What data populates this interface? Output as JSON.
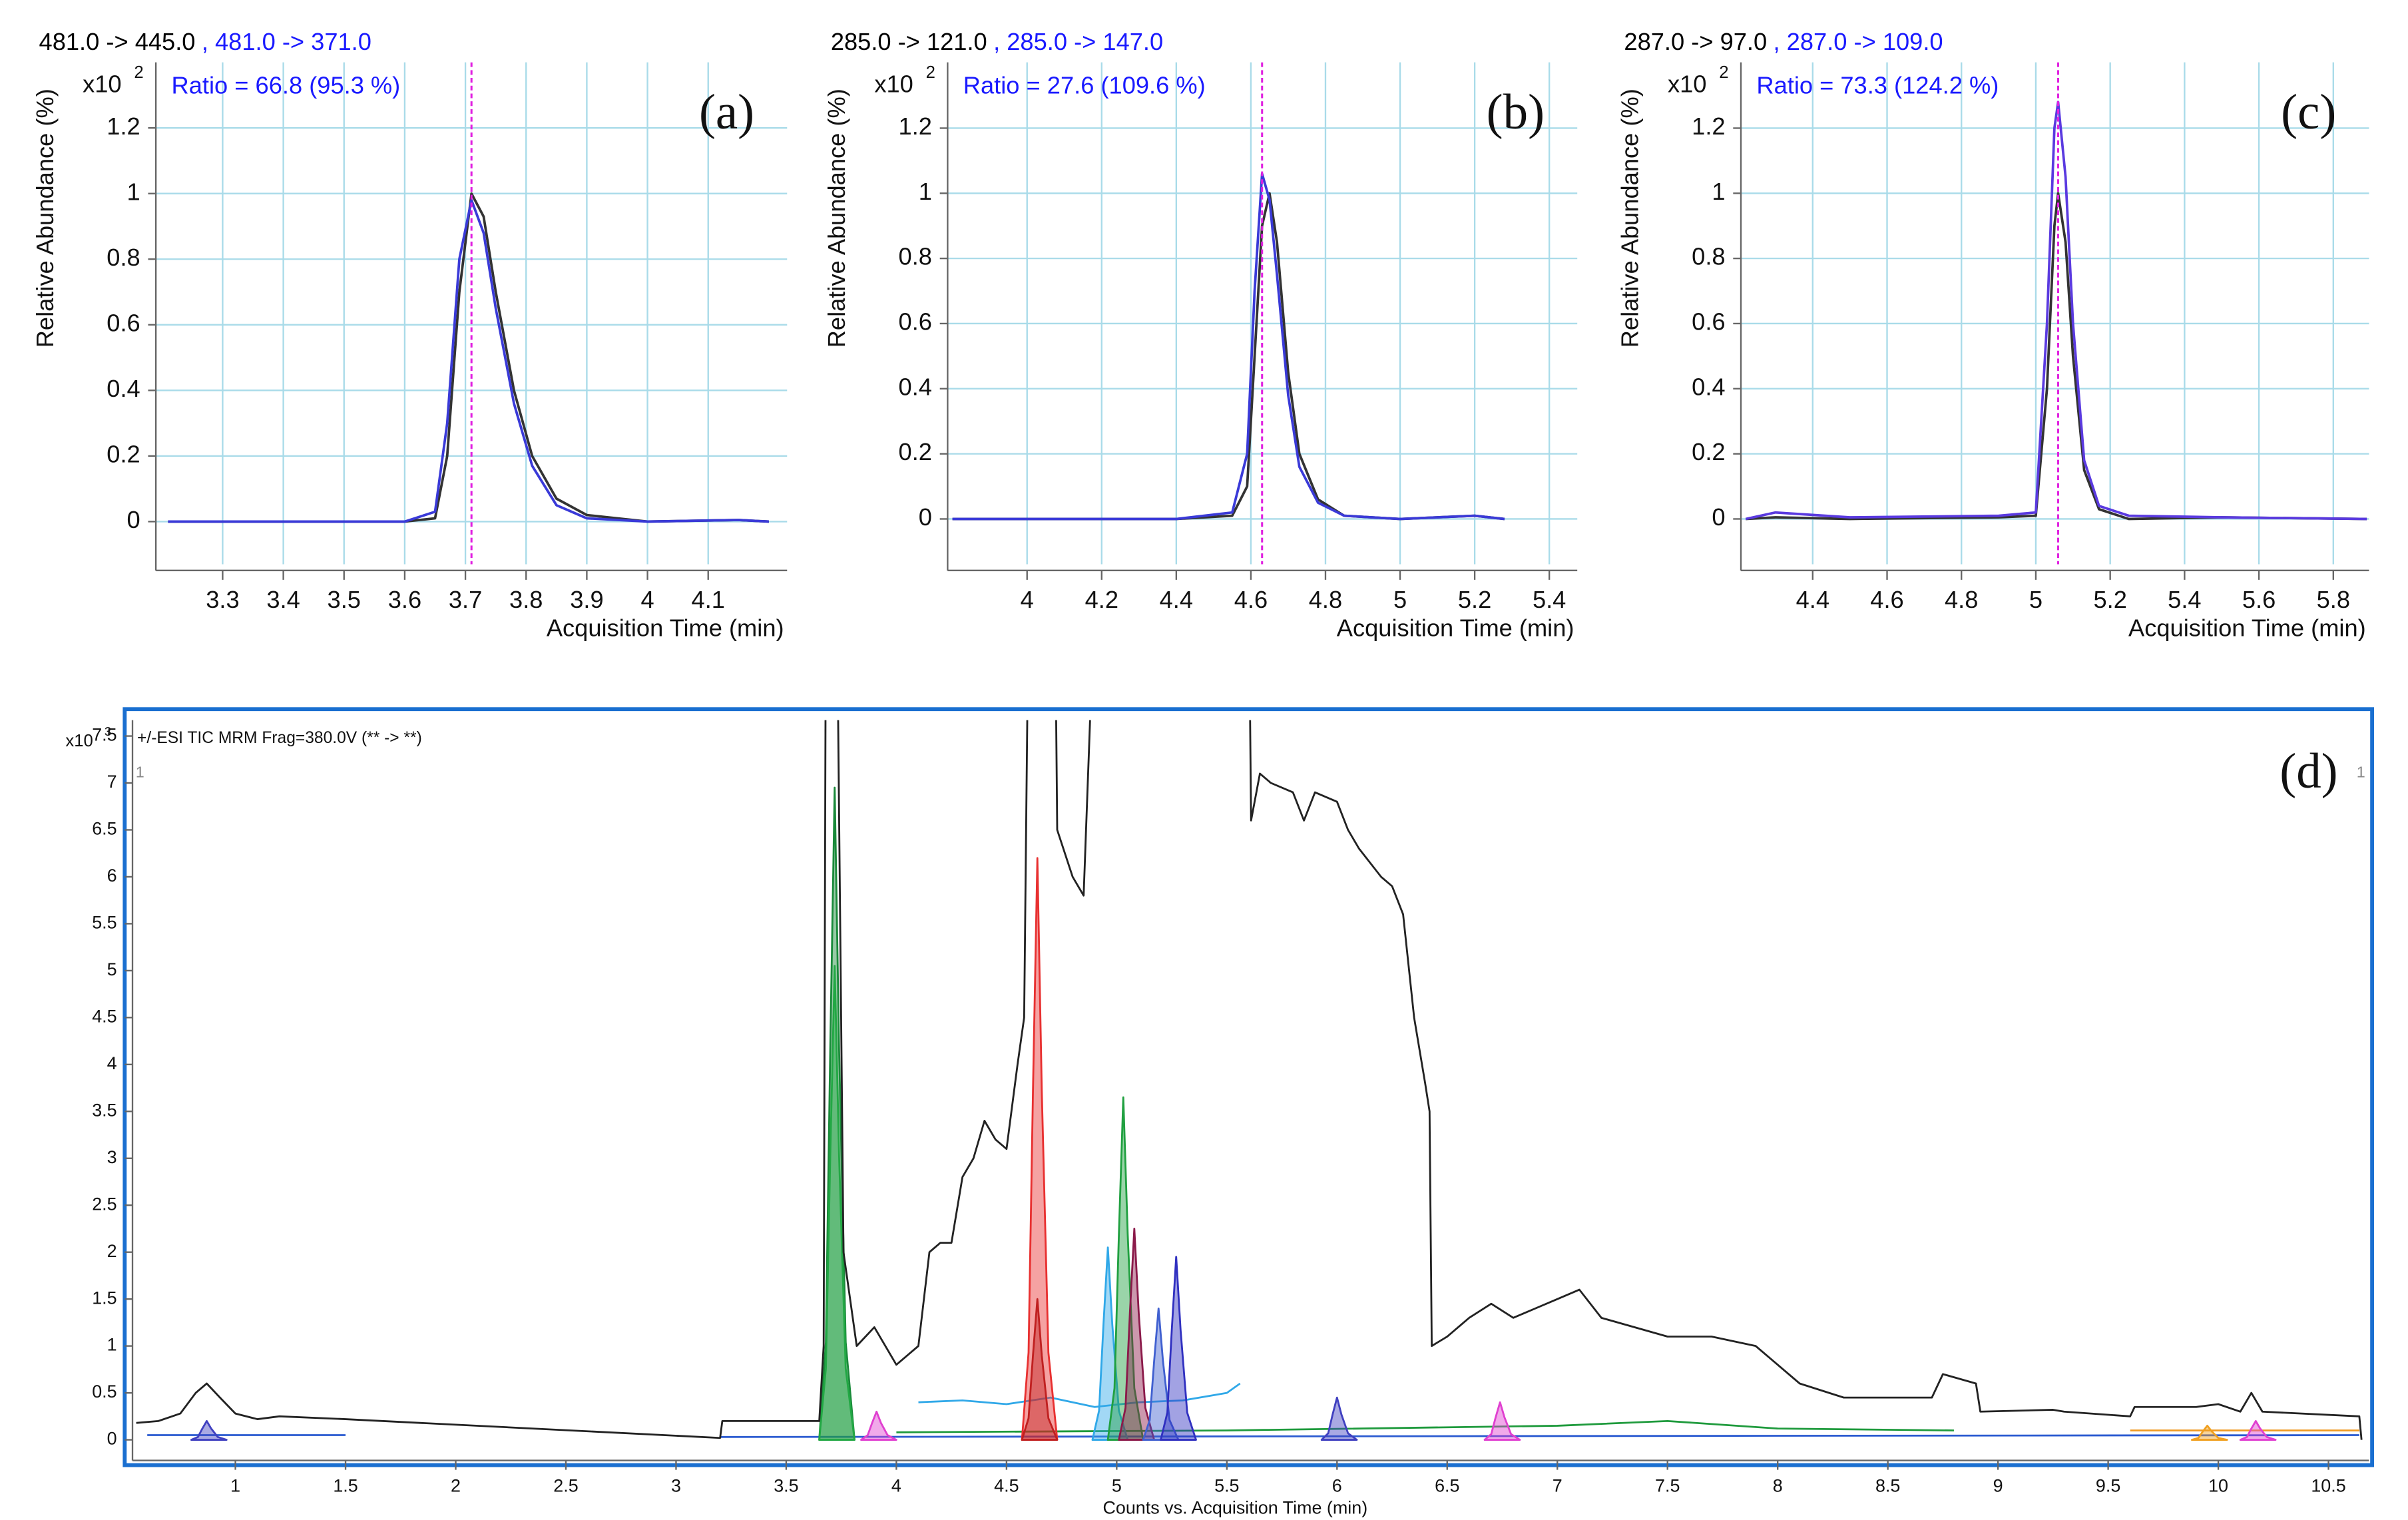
{
  "chart_data": [
    {
      "type": "line",
      "title": [
        {
          "text": "481.0 -> 445.0",
          "color": "#000000"
        },
        {
          "text": ", 481.0 -> 371.0",
          "color": "#1a1aff"
        }
      ],
      "y_multiplier": {
        "base": "x10",
        "exponent": 2
      },
      "annotation": "Ratio = 66.8 (95.3 %)",
      "panel_label": "(a)",
      "ylabel": "Relative Abundance (%)",
      "xlabel": "Acquisition Time (min)",
      "xlim": [
        3.19,
        4.23
      ],
      "xticks": [
        3.3,
        3.4,
        3.5,
        3.6,
        3.7,
        3.8,
        3.9,
        4,
        4.1
      ],
      "ylim": [
        -0.13,
        1.4
      ],
      "yticks": [
        0,
        0.2,
        0.4,
        0.6,
        0.8,
        1,
        1.2
      ],
      "grid": true,
      "marker_x": 3.71,
      "marker_color": "#e020e0",
      "series": [
        {
          "color": "#333333",
          "x": [
            3.21,
            3.6,
            3.65,
            3.67,
            3.69,
            3.71,
            3.73,
            3.75,
            3.78,
            3.81,
            3.85,
            3.9,
            4.0,
            4.15,
            4.2
          ],
          "values": [
            0,
            0,
            0.01,
            0.2,
            0.7,
            1.0,
            0.93,
            0.7,
            0.4,
            0.2,
            0.07,
            0.02,
            0,
            0.005,
            0
          ]
        },
        {
          "color": "#3a3ad8",
          "x": [
            3.21,
            3.6,
            3.65,
            3.67,
            3.69,
            3.71,
            3.73,
            3.75,
            3.78,
            3.81,
            3.85,
            3.9,
            4.0,
            4.15,
            4.2
          ],
          "values": [
            0,
            0,
            0.03,
            0.3,
            0.8,
            0.98,
            0.88,
            0.65,
            0.36,
            0.17,
            0.05,
            0.01,
            0,
            0.005,
            0
          ]
        }
      ]
    },
    {
      "type": "line",
      "title": [
        {
          "text": "285.0 -> 121.0",
          "color": "#000000"
        },
        {
          "text": ", 285.0 -> 147.0",
          "color": "#1a1aff"
        }
      ],
      "y_multiplier": {
        "base": "x10",
        "exponent": 2
      },
      "annotation": "Ratio = 27.6 (109.6 %)",
      "panel_label": "(b)",
      "ylabel": "Relative Abundance (%)",
      "xlabel": "Acquisition Time (min)",
      "xlim": [
        3.787,
        5.475
      ],
      "xticks": [
        4,
        4.2,
        4.4,
        4.6,
        4.8,
        5,
        5.2,
        5.4
      ],
      "ylim": [
        -0.139,
        1.402
      ],
      "yticks": [
        0,
        0.2,
        0.4,
        0.6,
        0.8,
        1,
        1.2
      ],
      "grid": true,
      "marker_x": 4.63,
      "marker_color": "#e020e0",
      "series": [
        {
          "color": "#333333",
          "x": [
            3.8,
            4.4,
            4.55,
            4.59,
            4.61,
            4.63,
            4.65,
            4.67,
            4.7,
            4.73,
            4.78,
            4.85,
            5.0,
            5.2,
            5.28
          ],
          "values": [
            0,
            0,
            0.01,
            0.1,
            0.5,
            0.9,
            1.0,
            0.85,
            0.45,
            0.2,
            0.06,
            0.01,
            0,
            0.01,
            0
          ]
        },
        {
          "color": "#3a3ad8",
          "x": [
            3.8,
            4.4,
            4.55,
            4.59,
            4.61,
            4.63,
            4.65,
            4.67,
            4.7,
            4.73,
            4.78,
            4.85,
            5.0,
            5.2,
            5.28
          ],
          "values": [
            0,
            0,
            0.02,
            0.2,
            0.7,
            1.06,
            0.98,
            0.75,
            0.38,
            0.16,
            0.05,
            0.01,
            0,
            0.01,
            0
          ]
        }
      ]
    },
    {
      "type": "line",
      "title": [
        {
          "text": "287.0 -> 97.0",
          "color": "#000000"
        },
        {
          "text": ", 287.0 -> 109.0",
          "color": "#1a1aff"
        }
      ],
      "y_multiplier": {
        "base": "x10",
        "exponent": 2
      },
      "annotation": "Ratio = 73.3 (124.2 %)",
      "panel_label": "(c)",
      "ylabel": "Relative Abundance (%)",
      "xlabel": "Acquisition Time (min)",
      "xlim": [
        4.207,
        5.896
      ],
      "xticks": [
        4.4,
        4.6,
        4.8,
        5,
        5.2,
        5.4,
        5.6,
        5.8
      ],
      "ylim": [
        -0.139,
        1.402
      ],
      "yticks": [
        0,
        0.2,
        0.4,
        0.6,
        0.8,
        1,
        1.2
      ],
      "grid": true,
      "marker_x": 5.06,
      "marker_color": "#e020e0",
      "series": [
        {
          "color": "#333333",
          "x": [
            4.22,
            4.3,
            4.5,
            4.9,
            5.0,
            5.03,
            5.05,
            5.06,
            5.08,
            5.1,
            5.13,
            5.17,
            5.25,
            5.5,
            5.89
          ],
          "values": [
            0,
            0.005,
            0,
            0.005,
            0.01,
            0.4,
            0.9,
            1.0,
            0.85,
            0.5,
            0.15,
            0.03,
            0,
            0.005,
            0
          ]
        },
        {
          "color": "#5a3ae0",
          "x": [
            4.22,
            4.3,
            4.5,
            4.9,
            5.0,
            5.03,
            5.05,
            5.06,
            5.08,
            5.1,
            5.13,
            5.17,
            5.25,
            5.5,
            5.89
          ],
          "values": [
            0,
            0.02,
            0.005,
            0.01,
            0.02,
            0.6,
            1.2,
            1.28,
            1.05,
            0.6,
            0.18,
            0.04,
            0.01,
            0.005,
            0
          ]
        }
      ]
    },
    {
      "type": "line",
      "title": "+/-ESI TIC MRM Frag=380.0V (** -> **)",
      "y_multiplier": {
        "base": "x10",
        "exponent": 3
      },
      "panel_label": "(d)",
      "corner_label": 1,
      "xlabel": "Counts vs. Acquisition Time (min)",
      "xlim": [
        0.533,
        10.684
      ],
      "xticks": [
        1,
        1.5,
        2,
        2.5,
        3,
        3.5,
        4,
        4.5,
        5,
        5.5,
        6,
        6.5,
        7,
        7.5,
        8,
        8.5,
        9,
        9.5,
        10,
        10.5
      ],
      "ylim": [
        -0.22,
        7.67
      ],
      "yticks": [
        0,
        0.5,
        1,
        1.5,
        2,
        2.5,
        3,
        3.5,
        4,
        4.5,
        5,
        5.5,
        6,
        6.5,
        7,
        7.5
      ],
      "grid": false,
      "frame_color": "#1a6fd0",
      "series": [
        {
          "color": "#1e9a3c",
          "x": [
            4.0,
            5.5,
            7.0,
            7.5,
            8.0,
            8.8
          ],
          "values": [
            0.08,
            0.1,
            0.15,
            0.2,
            0.12,
            0.1
          ]
        },
        {
          "color": "#2a5ad0",
          "x": [
            0.6,
            1.5
          ],
          "values": [
            0.05,
            0.05
          ]
        },
        {
          "color": "#2a5ad0",
          "x": [
            3.2,
            10.64
          ],
          "values": [
            0.03,
            0.05
          ]
        },
        {
          "color": "#f09a20",
          "x": [
            9.6,
            10.64
          ],
          "values": [
            0.1,
            0.1
          ]
        },
        {
          "color": "#30a8e8",
          "x": [
            4.1,
            4.3,
            4.5,
            4.7,
            4.9,
            5.1,
            5.3,
            5.5,
            5.56
          ],
          "values": [
            0.4,
            0.42,
            0.38,
            0.45,
            0.35,
            0.4,
            0.42,
            0.5,
            0.6
          ]
        },
        {
          "color": "#4040c0",
          "fill": true,
          "x": [
            0.8,
            0.83,
            0.85,
            0.87,
            0.89,
            0.92,
            0.96
          ],
          "values": [
            0,
            0.03,
            0.12,
            0.2,
            0.12,
            0.03,
            0
          ]
        },
        {
          "color": "#e040d0",
          "fill": true,
          "x": [
            3.84,
            3.87,
            3.89,
            3.91,
            3.93,
            3.96,
            4.0
          ],
          "values": [
            0,
            0.05,
            0.18,
            0.3,
            0.18,
            0.05,
            0
          ]
        },
        {
          "color": "#e040d0",
          "fill": true,
          "x": [
            6.67,
            6.7,
            6.72,
            6.74,
            6.76,
            6.79,
            6.83
          ],
          "values": [
            0,
            0.06,
            0.24,
            0.4,
            0.24,
            0.06,
            0
          ]
        },
        {
          "color": "#e040d0",
          "fill": true,
          "x": [
            10.1,
            10.13,
            10.15,
            10.17,
            10.19,
            10.22,
            10.26
          ],
          "values": [
            0,
            0.03,
            0.12,
            0.2,
            0.12,
            0.03,
            0
          ]
        },
        {
          "color": "#4040c0",
          "fill": true,
          "x": [
            5.93,
            5.96,
            5.98,
            6.0,
            6.02,
            6.05,
            6.09
          ],
          "values": [
            0,
            0.07,
            0.27,
            0.45,
            0.27,
            0.07,
            0
          ]
        },
        {
          "color": "#f0a020",
          "fill": true,
          "x": [
            9.88,
            9.91,
            9.93,
            9.95,
            9.97,
            10.0,
            10.04
          ],
          "values": [
            0,
            0.02,
            0.09,
            0.15,
            0.09,
            0.02,
            0
          ]
        },
        {
          "color": "#1a8a3a",
          "fill": true,
          "x": [
            3.65,
            3.68,
            3.7,
            3.72,
            3.74,
            3.77,
            3.81
          ],
          "values": [
            0,
            1.04,
            4.17,
            6.95,
            4.17,
            1.04,
            0
          ]
        },
        {
          "color": "#22a844",
          "fill": true,
          "x": [
            3.65,
            3.68,
            3.7,
            3.72,
            3.74,
            3.77,
            3.81
          ],
          "values": [
            0,
            0.76,
            3.03,
            5.05,
            3.03,
            0.76,
            0
          ]
        },
        {
          "color": "#e83030",
          "fill": true,
          "x": [
            4.57,
            4.6,
            4.62,
            4.64,
            4.66,
            4.69,
            4.73
          ],
          "values": [
            0,
            0.93,
            3.72,
            6.2,
            3.72,
            0.93,
            0
          ]
        },
        {
          "color": "#c02020",
          "fill": true,
          "x": [
            4.57,
            4.6,
            4.62,
            4.64,
            4.66,
            4.69,
            4.73
          ],
          "values": [
            0,
            0.23,
            0.9,
            1.5,
            0.9,
            0.23,
            0
          ]
        },
        {
          "color": "#30a8e8",
          "fill": true,
          "x": [
            4.89,
            4.92,
            4.94,
            4.96,
            4.98,
            5.01,
            5.05
          ],
          "values": [
            0,
            0.31,
            1.23,
            2.05,
            1.23,
            0.31,
            0
          ]
        },
        {
          "color": "#20a040",
          "fill": true,
          "x": [
            4.96,
            4.99,
            5.01,
            5.03,
            5.05,
            5.08,
            5.12
          ],
          "values": [
            0,
            0.55,
            2.19,
            3.65,
            2.19,
            0.55,
            0
          ]
        },
        {
          "color": "#8b1a4a",
          "fill": true,
          "x": [
            5.01,
            5.04,
            5.06,
            5.08,
            5.1,
            5.13,
            5.17
          ],
          "values": [
            0,
            0.34,
            1.35,
            2.25,
            1.35,
            0.34,
            0
          ]
        },
        {
          "color": "#4060d0",
          "fill": true,
          "x": [
            5.12,
            5.15,
            5.17,
            5.19,
            5.21,
            5.24,
            5.28
          ],
          "values": [
            0,
            0.21,
            0.84,
            1.4,
            0.84,
            0.21,
            0
          ]
        },
        {
          "color": "#3030c0",
          "fill": true,
          "x": [
            5.2,
            5.23,
            5.25,
            5.27,
            5.29,
            5.32,
            5.36
          ],
          "values": [
            0,
            0.29,
            1.17,
            1.95,
            1.17,
            0.29,
            0
          ]
        },
        {
          "color": "#222222",
          "x": [
            0.55,
            0.65,
            0.75,
            0.82,
            0.87,
            0.93,
            1.0,
            1.1,
            1.2,
            1.5,
            3.2,
            3.21,
            3.65,
            3.67,
            3.68,
            3.73,
            3.76,
            3.82,
            3.9,
            4.0,
            4.1,
            4.15,
            4.2,
            4.25,
            4.3,
            4.35,
            4.4,
            4.45,
            4.5,
            4.55,
            4.58,
            4.6,
            4.72,
            4.73,
            4.8,
            4.85,
            4.9,
            5.6,
            5.61,
            5.65,
            5.7,
            5.8,
            5.85,
            5.9,
            6.0,
            6.05,
            6.1,
            6.2,
            6.25,
            6.3,
            6.35,
            6.4,
            6.42,
            6.43,
            6.5,
            6.6,
            6.7,
            6.8,
            6.9,
            7.0,
            7.1,
            7.2,
            7.5,
            7.7,
            7.9,
            8.0,
            8.1,
            8.3,
            8.7,
            8.75,
            8.9,
            8.92,
            9.25,
            9.3,
            9.6,
            9.62,
            9.9,
            10.0,
            10.1,
            10.15,
            10.2,
            10.64,
            10.65
          ],
          "values": [
            0.18,
            0.2,
            0.28,
            0.5,
            0.6,
            0.45,
            0.28,
            0.22,
            0.25,
            0.22,
            0.02,
            0.2,
            0.2,
            1.0,
            9,
            9,
            2.0,
            1.0,
            1.2,
            0.8,
            1.0,
            2.0,
            2.1,
            2.1,
            2.8,
            3.0,
            3.4,
            3.2,
            3.1,
            4.0,
            4.5,
            9,
            9,
            6.5,
            6.0,
            5.8,
            9,
            9,
            6.6,
            7.1,
            7.0,
            6.9,
            6.6,
            6.9,
            6.8,
            6.5,
            6.3,
            6.0,
            5.9,
            5.6,
            4.5,
            3.8,
            3.5,
            1.0,
            1.1,
            1.3,
            1.45,
            1.3,
            1.4,
            1.5,
            1.6,
            1.3,
            1.1,
            1.1,
            1.0,
            0.8,
            0.6,
            0.45,
            0.45,
            0.7,
            0.6,
            0.3,
            0.32,
            0.3,
            0.25,
            0.35,
            0.35,
            0.38,
            0.3,
            0.5,
            0.3,
            0.25,
            0
          ]
        }
      ]
    }
  ]
}
